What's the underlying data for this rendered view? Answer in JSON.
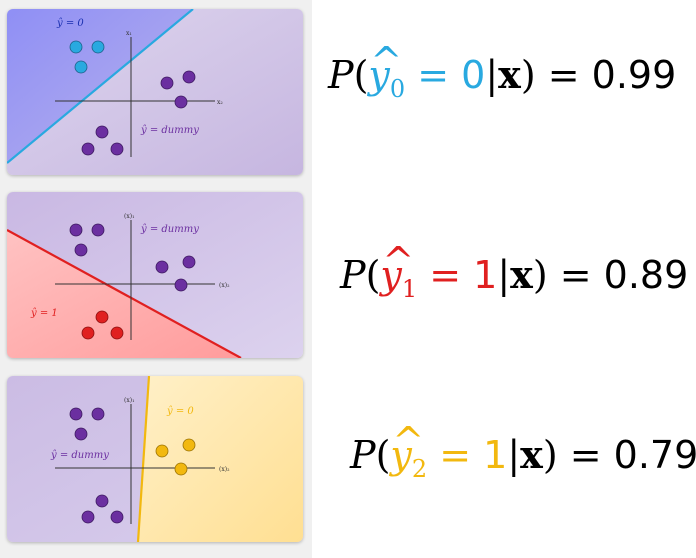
{
  "colors": {
    "cyan": "#29a9e0",
    "red": "#e02020",
    "yellow": "#f2b80f",
    "purple": "#6b2fa0"
  },
  "panels": [
    {
      "region_label": "ŷ = 0",
      "other_label": "ŷ = dummy",
      "axis_x": "x₂",
      "axis_y": "x₁"
    },
    {
      "region_label": "ŷ = 1",
      "other_label": "ŷ = dummy",
      "axis_x": "(x)₂",
      "axis_y": "(x)₁"
    },
    {
      "region_label": "ŷ = 0",
      "other_label": "ŷ = dummy",
      "axis_x": "(x)₂",
      "axis_y": "(x)₁"
    }
  ],
  "formulas": [
    {
      "P": "P",
      "open": "(",
      "y": "y",
      "hat": "^",
      "sub": "0",
      "eq1": " = ",
      "val": "0",
      "bar": "|",
      "x": "x",
      "close": ")",
      "eq2": " = ",
      "prob": "0.99"
    },
    {
      "P": "P",
      "open": "(",
      "y": "y",
      "hat": "^",
      "sub": "1",
      "eq1": " = ",
      "val": "1",
      "bar": "|",
      "x": "x",
      "close": ")",
      "eq2": " = ",
      "prob": "0.89"
    },
    {
      "P": "P",
      "open": "(",
      "y": "y",
      "hat": "^",
      "sub": "2",
      "eq1": " = ",
      "val": "1",
      "bar": "|",
      "x": "x",
      "close": ")",
      "eq2": " = ",
      "prob": "0.79"
    }
  ]
}
